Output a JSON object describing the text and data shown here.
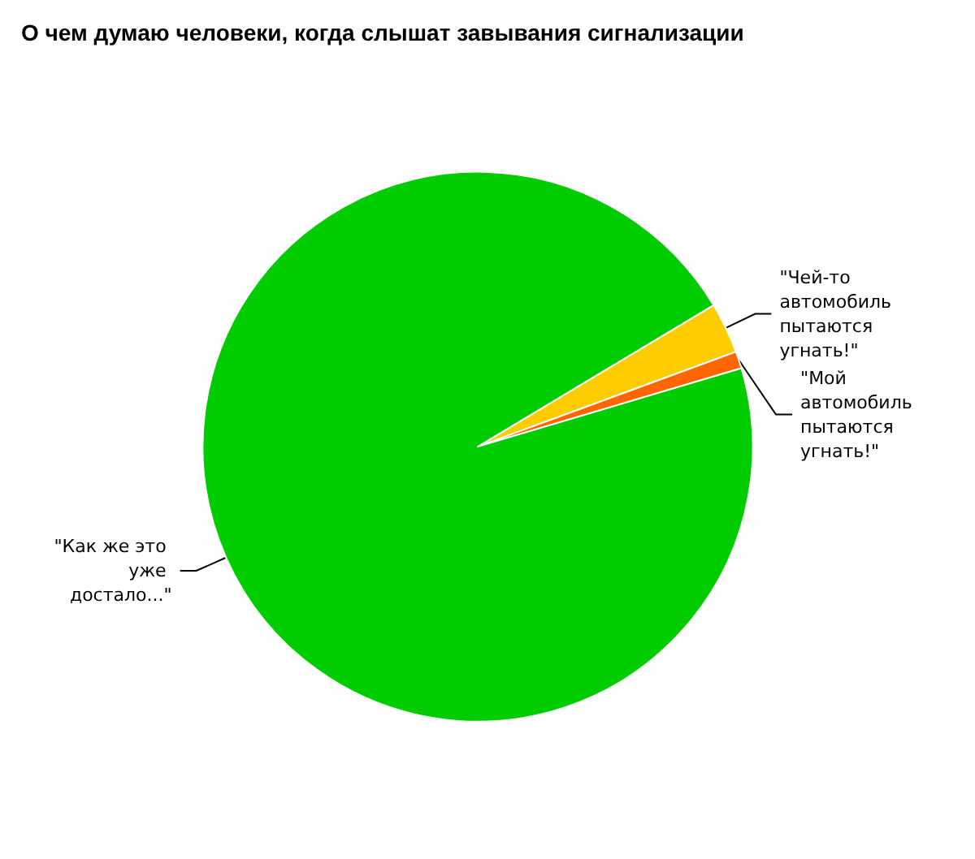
{
  "chart_data": {
    "type": "pie",
    "title": "О чем думаю человеки, когда слышат завывания сигнализации",
    "categories": [
      "\"Чей-то автомобиль пытаются угнать!\"",
      "\"Мой автомобиль пытаются угнать!\"",
      "\"Как же это уже достало...\""
    ],
    "values": [
      3,
      1,
      96
    ],
    "colors": [
      "#ffcc00",
      "#ff6600",
      "#00cc00"
    ],
    "legend": false
  }
}
